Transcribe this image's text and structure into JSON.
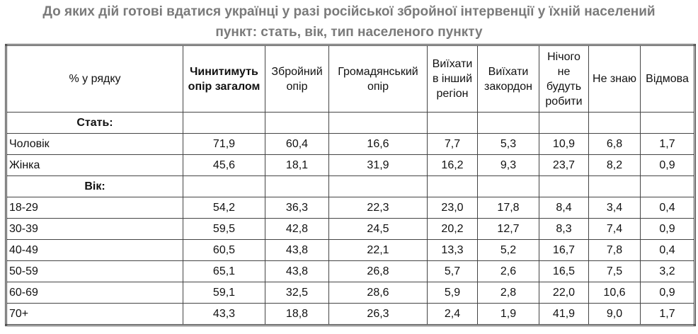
{
  "title": "До яких дій готові вдатися українці у разі російської збройної інтервенції у їхній населений пункт: стать, вік, тип населеного пункту",
  "table": {
    "header": [
      "% у рядку",
      "Чинитимуть опір загалом",
      "Збройний опір",
      "Громадянський опір",
      "Виїхати в інший регіон",
      "Виїхати закордон",
      "Нічого не будуть робити",
      "Не знаю",
      "Відмова"
    ],
    "rows": [
      [
        "Стать:"
      ],
      [
        "Чоловік",
        "71,9",
        "60,4",
        "16,6",
        "7,7",
        "5,3",
        "10,9",
        "6,8",
        "1,7"
      ],
      [
        "Жінка",
        "45,6",
        "18,1",
        "31,9",
        "16,2",
        "9,3",
        "23,7",
        "8,2",
        "0,9"
      ],
      [
        "Вік:"
      ],
      [
        "18-29",
        "54,2",
        "36,3",
        "22,3",
        "23,0",
        "17,8",
        "8,4",
        "3,4",
        "0,4"
      ],
      [
        "30-39",
        "59,5",
        "42,8",
        "24,5",
        "20,2",
        "12,7",
        "8,3",
        "7,4",
        "0,9"
      ],
      [
        "40-49",
        "60,5",
        "43,8",
        "22,1",
        "13,3",
        "5,2",
        "16,7",
        "7,8",
        "0,4"
      ],
      [
        "50-59",
        "65,1",
        "43,8",
        "26,8",
        "5,7",
        "2,6",
        "16,5",
        "7,5",
        "3,2"
      ],
      [
        "60-69",
        "59,1",
        "32,5",
        "28,6",
        "5,9",
        "2,8",
        "22,0",
        "10,6",
        "0,9"
      ],
      [
        "70+",
        "43,3",
        "18,8",
        "26,3",
        "2,4",
        "1,9",
        "41,9",
        "9,0",
        "1,7"
      ]
    ]
  }
}
